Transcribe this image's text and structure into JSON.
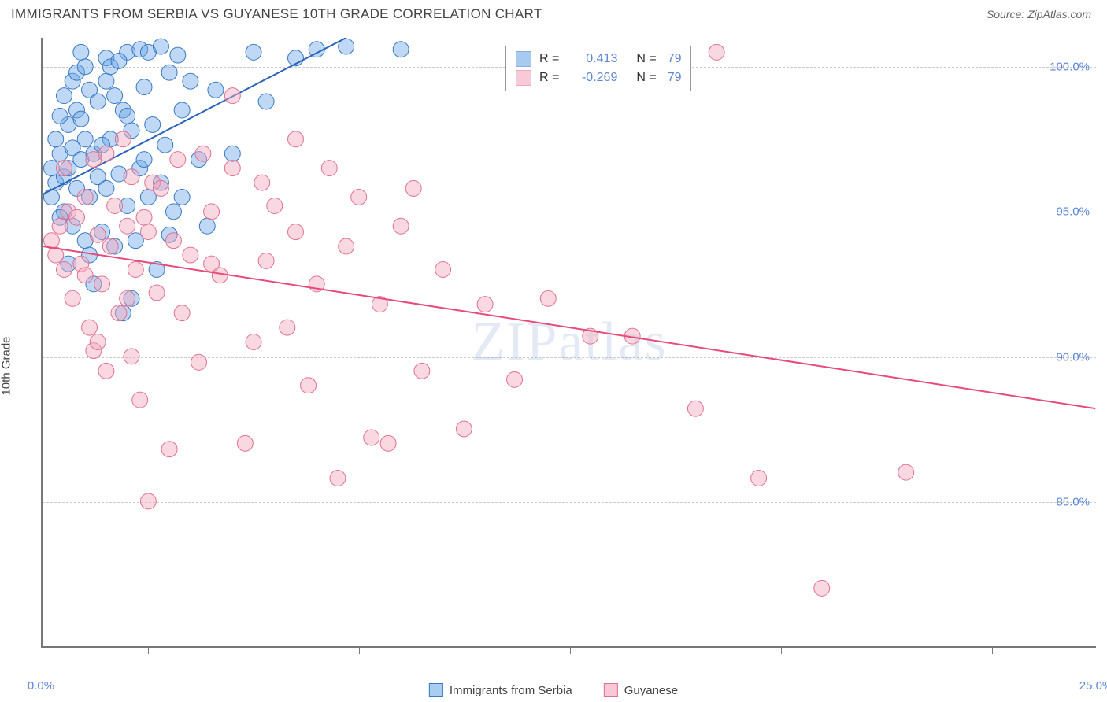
{
  "header": {
    "title": "IMMIGRANTS FROM SERBIA VS GUYANESE 10TH GRADE CORRELATION CHART",
    "source_prefix": "Source: ",
    "source_name": "ZipAtlas.com"
  },
  "chart": {
    "type": "scatter",
    "ylabel": "10th Grade",
    "background_color": "#ffffff",
    "grid_color": "#cccccc",
    "axis_color": "#777777",
    "tick_font_color": "#5b86d6",
    "xlim": [
      0,
      25
    ],
    "ylim": [
      80,
      101
    ],
    "x_ticks_labeled": [
      {
        "val": 0,
        "label": "0.0%"
      },
      {
        "val": 25,
        "label": "25.0%"
      }
    ],
    "x_minor_ticks": [
      2.5,
      5,
      7.5,
      10,
      12.5,
      15,
      17.5,
      20,
      22.5
    ],
    "y_ticks": [
      {
        "val": 85,
        "label": "85.0%"
      },
      {
        "val": 90,
        "label": "90.0%"
      },
      {
        "val": 95,
        "label": "95.0%"
      },
      {
        "val": 100,
        "label": "100.0%"
      }
    ],
    "watermark": "ZIPatlas",
    "marker_radius": 10,
    "marker_opacity": 0.45,
    "line_width": 2,
    "series": [
      {
        "name": "Immigrants from Serbia",
        "color": "#6ea8e8",
        "stroke": "#3a78c2",
        "line_color": "#2a64b8",
        "r_label": "R =",
        "r_value": "0.413",
        "n_label": "N =",
        "n_value": "79",
        "trend": {
          "x1": 0,
          "y1": 95.6,
          "x2": 7.2,
          "y2": 101
        },
        "points": [
          [
            0.2,
            95.5
          ],
          [
            0.3,
            96.0
          ],
          [
            0.4,
            97.0
          ],
          [
            0.5,
            96.2
          ],
          [
            0.5,
            95.0
          ],
          [
            0.6,
            98.0
          ],
          [
            0.6,
            96.5
          ],
          [
            0.7,
            99.5
          ],
          [
            0.7,
            97.2
          ],
          [
            0.8,
            99.8
          ],
          [
            0.8,
            95.8
          ],
          [
            0.9,
            100.5
          ],
          [
            0.9,
            96.8
          ],
          [
            1.0,
            100.0
          ],
          [
            1.0,
            97.5
          ],
          [
            1.1,
            99.2
          ],
          [
            1.1,
            95.5
          ],
          [
            1.2,
            97.0
          ],
          [
            1.3,
            96.2
          ],
          [
            1.3,
            98.8
          ],
          [
            1.4,
            94.3
          ],
          [
            1.5,
            100.3
          ],
          [
            1.5,
            95.8
          ],
          [
            1.6,
            97.5
          ],
          [
            1.7,
            99.0
          ],
          [
            1.7,
            93.8
          ],
          [
            1.8,
            96.3
          ],
          [
            1.9,
            98.5
          ],
          [
            1.9,
            91.5
          ],
          [
            2.0,
            100.5
          ],
          [
            2.0,
            95.2
          ],
          [
            2.1,
            97.8
          ],
          [
            2.2,
            94.0
          ],
          [
            2.3,
            100.6
          ],
          [
            2.3,
            96.5
          ],
          [
            2.4,
            99.3
          ],
          [
            2.5,
            100.5
          ],
          [
            2.5,
            95.5
          ],
          [
            2.6,
            98.0
          ],
          [
            2.7,
            93.0
          ],
          [
            2.8,
            100.7
          ],
          [
            2.9,
            97.3
          ],
          [
            3.0,
            99.8
          ],
          [
            3.1,
            95.0
          ],
          [
            3.2,
            100.4
          ],
          [
            3.3,
            98.5
          ],
          [
            3.5,
            99.5
          ],
          [
            3.7,
            96.8
          ],
          [
            3.9,
            94.5
          ],
          [
            4.1,
            99.2
          ],
          [
            4.5,
            97.0
          ],
          [
            5.0,
            100.5
          ],
          [
            5.3,
            98.8
          ],
          [
            6.0,
            100.3
          ],
          [
            6.5,
            100.6
          ],
          [
            7.2,
            100.7
          ],
          [
            8.5,
            100.6
          ],
          [
            0.4,
            94.8
          ],
          [
            0.6,
            93.2
          ],
          [
            1.2,
            92.5
          ],
          [
            1.5,
            99.5
          ],
          [
            2.1,
            92.0
          ],
          [
            0.8,
            98.5
          ],
          [
            1.0,
            94.0
          ],
          [
            1.4,
            97.3
          ],
          [
            2.8,
            96.0
          ],
          [
            3.3,
            95.5
          ],
          [
            0.5,
            99.0
          ],
          [
            0.9,
            98.2
          ],
          [
            1.6,
            100.0
          ],
          [
            2.0,
            98.3
          ],
          [
            0.3,
            97.5
          ],
          [
            0.7,
            94.5
          ],
          [
            1.1,
            93.5
          ],
          [
            2.4,
            96.8
          ],
          [
            3.0,
            94.2
          ],
          [
            0.2,
            96.5
          ],
          [
            0.4,
            98.3
          ],
          [
            1.8,
            100.2
          ]
        ]
      },
      {
        "name": "Guyanese",
        "color": "#f5a8be",
        "stroke": "#e07090",
        "line_color": "#e84a7a",
        "r_label": "R =",
        "r_value": "-0.269",
        "n_label": "N =",
        "n_value": "79",
        "trend": {
          "x1": 0,
          "y1": 93.8,
          "x2": 25,
          "y2": 88.2
        },
        "points": [
          [
            0.3,
            93.5
          ],
          [
            0.4,
            94.5
          ],
          [
            0.5,
            96.5
          ],
          [
            0.6,
            95.0
          ],
          [
            0.7,
            92.0
          ],
          [
            0.8,
            94.8
          ],
          [
            0.9,
            93.2
          ],
          [
            1.0,
            95.5
          ],
          [
            1.1,
            91.0
          ],
          [
            1.2,
            96.8
          ],
          [
            1.2,
            90.2
          ],
          [
            1.3,
            94.2
          ],
          [
            1.4,
            92.5
          ],
          [
            1.5,
            97.0
          ],
          [
            1.5,
            89.5
          ],
          [
            1.6,
            93.8
          ],
          [
            1.7,
            95.2
          ],
          [
            1.8,
            91.5
          ],
          [
            1.9,
            97.5
          ],
          [
            2.0,
            94.5
          ],
          [
            2.1,
            90.0
          ],
          [
            2.1,
            96.2
          ],
          [
            2.2,
            93.0
          ],
          [
            2.3,
            88.5
          ],
          [
            2.4,
            94.8
          ],
          [
            2.5,
            85.0
          ],
          [
            2.6,
            96.0
          ],
          [
            2.7,
            92.2
          ],
          [
            2.8,
            95.8
          ],
          [
            3.0,
            86.8
          ],
          [
            3.1,
            94.0
          ],
          [
            3.3,
            91.5
          ],
          [
            3.5,
            93.5
          ],
          [
            3.7,
            89.8
          ],
          [
            3.8,
            97.0
          ],
          [
            4.0,
            95.0
          ],
          [
            4.2,
            92.8
          ],
          [
            4.5,
            96.5
          ],
          [
            4.5,
            99.0
          ],
          [
            4.8,
            87.0
          ],
          [
            5.0,
            90.5
          ],
          [
            5.3,
            93.3
          ],
          [
            5.5,
            95.2
          ],
          [
            5.8,
            91.0
          ],
          [
            6.0,
            97.5
          ],
          [
            6.0,
            94.3
          ],
          [
            6.3,
            89.0
          ],
          [
            6.5,
            92.5
          ],
          [
            7.0,
            85.8
          ],
          [
            7.2,
            93.8
          ],
          [
            7.5,
            95.5
          ],
          [
            7.8,
            87.2
          ],
          [
            8.0,
            91.8
          ],
          [
            8.2,
            87.0
          ],
          [
            8.5,
            94.5
          ],
          [
            9.0,
            89.5
          ],
          [
            9.5,
            93.0
          ],
          [
            10.0,
            87.5
          ],
          [
            10.5,
            91.8
          ],
          [
            11.2,
            89.2
          ],
          [
            12.0,
            92.0
          ],
          [
            13.0,
            90.7
          ],
          [
            14.0,
            90.7
          ],
          [
            15.5,
            88.2
          ],
          [
            16.0,
            100.5
          ],
          [
            17.0,
            85.8
          ],
          [
            18.5,
            82.0
          ],
          [
            20.5,
            86.0
          ],
          [
            0.5,
            93.0
          ],
          [
            1.0,
            92.8
          ],
          [
            1.3,
            90.5
          ],
          [
            2.0,
            92.0
          ],
          [
            2.5,
            94.3
          ],
          [
            3.2,
            96.8
          ],
          [
            4.0,
            93.2
          ],
          [
            5.2,
            96.0
          ],
          [
            6.8,
            96.5
          ],
          [
            8.8,
            95.8
          ],
          [
            0.2,
            94.0
          ]
        ]
      }
    ],
    "legend_bottom": [
      {
        "label": "Immigrants from Serbia",
        "fill": "#a8cdf0",
        "stroke": "#3a78c2"
      },
      {
        "label": "Guyanese",
        "fill": "#f8c8d6",
        "stroke": "#e07090"
      }
    ]
  }
}
